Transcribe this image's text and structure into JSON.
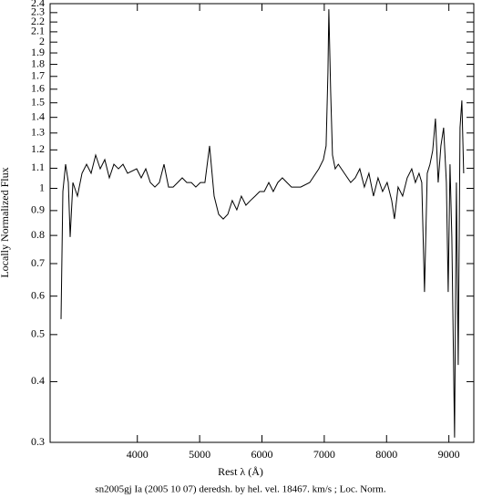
{
  "chart_data": {
    "type": "line",
    "xlabel": "Rest λ (Å)",
    "ylabel": "Locally Normalized Flux",
    "caption": "sn2005gj Ia (2005 10 07) deredsh. by hel. vel. 18467. km/s ;  Loc. Norm.",
    "log_y": true,
    "xlim": [
      2600,
      9400
    ],
    "xticks": [
      4000,
      5000,
      6000,
      7000,
      8000,
      9000
    ],
    "ylim": [
      0.3,
      2.4
    ],
    "yticks": [
      0.3,
      0.4,
      0.5,
      0.6,
      0.7,
      0.8,
      0.9,
      1,
      1.1,
      1.2,
      1.3,
      1.4,
      1.5,
      1.6,
      1.7,
      1.8,
      1.9,
      2,
      2.1,
      2.2,
      2.3,
      2.4
    ],
    "series": [
      {
        "color": "#000000",
        "x": [
          2775,
          2805,
          2849,
          2892,
          2922,
          2966,
          3039,
          3112,
          3185,
          3258,
          3331,
          3404,
          3477,
          3550,
          3623,
          3697,
          3770,
          3843,
          3989,
          4062,
          4135,
          4208,
          4281,
          4354,
          4428,
          4501,
          4574,
          4647,
          4720,
          4793,
          4866,
          4939,
          5012,
          5085,
          5159,
          5232,
          5305,
          5378,
          5451,
          5524,
          5597,
          5670,
          5743,
          5816,
          5890,
          5963,
          6036,
          6109,
          6182,
          6255,
          6328,
          6401,
          6474,
          6621,
          6767,
          6913,
          6986,
          7030,
          7059,
          7074,
          7103,
          7132,
          7176,
          7225,
          7323,
          7425,
          7498,
          7571,
          7644,
          7717,
          7790,
          7863,
          7936,
          8009,
          8083,
          8126,
          8185,
          8258,
          8331,
          8404,
          8463,
          8521,
          8565,
          8609,
          8653,
          8697,
          8740,
          8784,
          8828,
          8872,
          8916,
          8960,
          8989,
          9018,
          9047,
          9091,
          9121,
          9150,
          9179,
          9208,
          9237
        ],
        "values": [
          0.538,
          0.985,
          1.121,
          1.028,
          0.794,
          1.028,
          0.964,
          1.074,
          1.121,
          1.074,
          1.171,
          1.097,
          1.146,
          1.051,
          1.121,
          1.097,
          1.121,
          1.074,
          1.097,
          1.051,
          1.097,
          1.028,
          1.006,
          1.028,
          1.121,
          1.006,
          1.006,
          1.028,
          1.051,
          1.028,
          1.028,
          1.006,
          1.028,
          1.028,
          1.223,
          0.964,
          0.884,
          0.865,
          0.884,
          0.944,
          0.903,
          0.964,
          0.923,
          0.944,
          0.964,
          0.985,
          0.985,
          1.028,
          0.985,
          1.028,
          1.051,
          1.028,
          1.006,
          1.006,
          1.028,
          1.097,
          1.146,
          1.223,
          1.728,
          2.338,
          1.585,
          1.171,
          1.097,
          1.121,
          1.074,
          1.028,
          1.051,
          1.097,
          1.006,
          1.074,
          0.964,
          1.051,
          0.985,
          1.028,
          0.944,
          0.865,
          1.006,
          0.964,
          1.051,
          1.097,
          1.028,
          1.074,
          1.028,
          0.612,
          1.074,
          1.121,
          1.196,
          1.392,
          1.028,
          1.223,
          1.333,
          1.028,
          0.612,
          1.121,
          0.794,
          0.307,
          1.028,
          0.433,
          1.333,
          1.517,
          1.074
        ]
      }
    ]
  }
}
